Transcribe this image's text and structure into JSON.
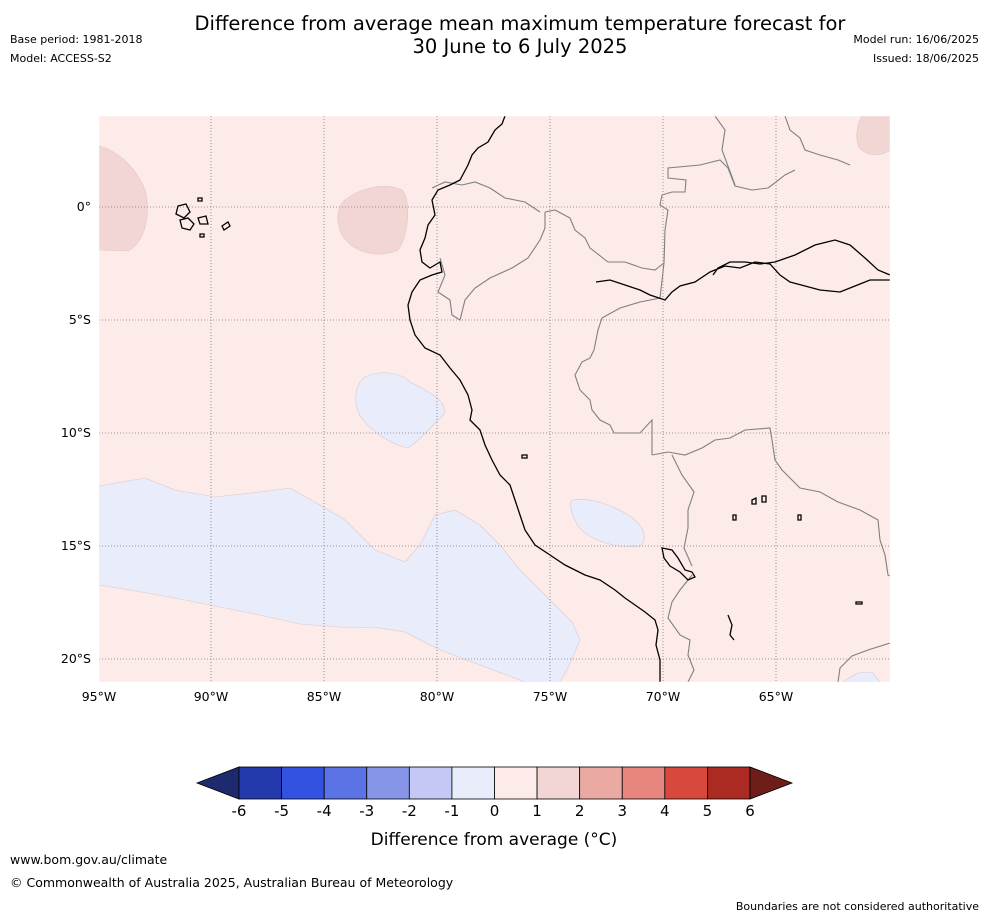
{
  "title_line1": "Difference from average mean maximum temperature forecast for",
  "title_line2": "30 June to 6 July 2025",
  "meta": {
    "base_period": "Base period: 1981-2018",
    "model": "Model: ACCESS-S2",
    "model_run": "Model run: 16/06/2025",
    "issued": "Issued: 18/06/2025"
  },
  "map": {
    "lon_range": [
      -95,
      -60
    ],
    "lat_range": [
      -21,
      4
    ],
    "lon_ticks": [
      "95°W",
      "90°W",
      "85°W",
      "80°W",
      "75°W",
      "70°W",
      "65°W"
    ],
    "lat_ticks": [
      "0°",
      "5°S",
      "10°S",
      "15°S",
      "20°S"
    ],
    "colors": {
      "background_anomaly_0_to_1": "#fcebe9",
      "anomaly_1_to_2": "#f1d6d4",
      "anomaly_minus1_to_0": "#e8ecfb",
      "coastline": "#000000",
      "border": "#808080",
      "grid": "#7a7a7a"
    }
  },
  "colorbar": {
    "ticks": [
      "-6",
      "-5",
      "-4",
      "-3",
      "-2",
      "-1",
      "0",
      "1",
      "2",
      "3",
      "4",
      "5",
      "6"
    ],
    "under_color": "#1d2a6e",
    "over_color": "#6e1e18",
    "colors": [
      "#2439ab",
      "#3352e2",
      "#5b73e4",
      "#8695e8",
      "#c3c8f5",
      "#e8ecfb",
      "#fcebe9",
      "#f1d6d4",
      "#eba9a4",
      "#e6867e",
      "#d9483d",
      "#ab2a22"
    ],
    "label": "Difference from average (°C)"
  },
  "footer": {
    "url": "www.bom.gov.au/climate",
    "copyright": "© Commonwealth of Australia 2025, Australian Bureau of Meteorology",
    "disclaimer": "Boundaries are not considered authoritative"
  }
}
